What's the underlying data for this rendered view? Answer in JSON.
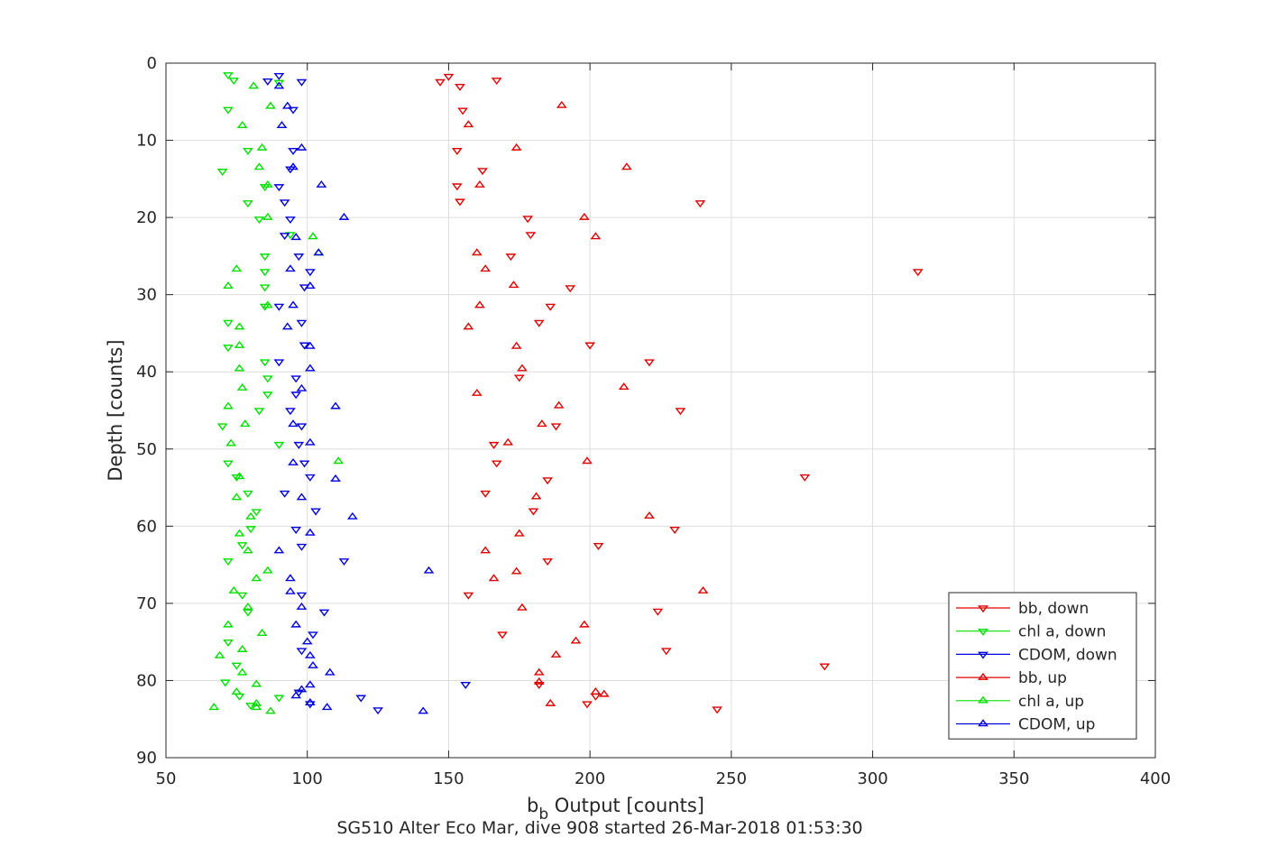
{
  "chart_data": {
    "type": "scatter",
    "title": "",
    "caption": "SG510 Alter Eco Mar, dive 908 started 26-Mar-2018 01:53:30",
    "xlabel_main": "b",
    "xlabel_sub": "b",
    "xlabel_rest": " Output [counts]",
    "ylabel": "Depth [counts]",
    "xlim": [
      50,
      400
    ],
    "ylim": [
      0,
      90
    ],
    "y_reversed": true,
    "grid": true,
    "xticks": [
      50,
      100,
      150,
      200,
      250,
      300,
      350,
      400
    ],
    "yticks": [
      0,
      10,
      20,
      30,
      40,
      50,
      60,
      70,
      80,
      90
    ],
    "legend_position": "bottom-right",
    "series": [
      {
        "name": "bb, down",
        "color": "#e00000",
        "marker": "triangle-down",
        "points": [
          [
            150,
            1.7
          ],
          [
            147,
            2.4
          ],
          [
            167,
            2.2
          ],
          [
            154,
            3.0
          ],
          [
            155,
            6.1
          ],
          [
            153,
            11.3
          ],
          [
            162,
            13.9
          ],
          [
            153,
            15.9
          ],
          [
            154,
            17.9
          ],
          [
            239,
            18.1
          ],
          [
            178,
            20.1
          ],
          [
            179,
            22.2
          ],
          [
            172,
            25.0
          ],
          [
            316,
            27.0
          ],
          [
            193,
            29.1
          ],
          [
            186,
            31.5
          ],
          [
            182,
            33.6
          ],
          [
            200,
            36.5
          ],
          [
            221,
            38.7
          ],
          [
            175,
            40.7
          ],
          [
            232,
            45.0
          ],
          [
            188,
            47.0
          ],
          [
            166,
            49.4
          ],
          [
            167,
            51.8
          ],
          [
            276,
            53.6
          ],
          [
            185,
            54.0
          ],
          [
            163,
            55.7
          ],
          [
            180,
            58.0
          ],
          [
            230,
            60.4
          ],
          [
            203,
            62.5
          ],
          [
            185,
            64.5
          ],
          [
            157,
            68.9
          ],
          [
            224,
            71.0
          ],
          [
            169,
            74.0
          ],
          [
            227,
            76.1
          ],
          [
            283,
            78.1
          ],
          [
            182,
            80.5
          ],
          [
            202,
            82.0
          ],
          [
            199,
            83.0
          ],
          [
            245,
            83.7
          ]
        ]
      },
      {
        "name": "chl a, down",
        "color": "#00e000",
        "marker": "triangle-down",
        "points": [
          [
            72,
            1.5
          ],
          [
            74,
            2.2
          ],
          [
            90,
            2.5
          ],
          [
            72,
            6.0
          ],
          [
            79,
            11.3
          ],
          [
            70,
            14.0
          ],
          [
            85,
            16.0
          ],
          [
            79,
            18.1
          ],
          [
            83,
            20.2
          ],
          [
            94,
            22.2
          ],
          [
            85,
            25.0
          ],
          [
            85,
            27.0
          ],
          [
            85,
            29.0
          ],
          [
            85,
            31.5
          ],
          [
            72,
            33.6
          ],
          [
            72,
            36.8
          ],
          [
            85,
            38.7
          ],
          [
            86,
            40.8
          ],
          [
            86,
            42.9
          ],
          [
            83,
            45.0
          ],
          [
            70,
            47.0
          ],
          [
            90,
            49.4
          ],
          [
            72,
            51.8
          ],
          [
            75,
            53.6
          ],
          [
            79,
            55.7
          ],
          [
            82,
            58.1
          ],
          [
            80,
            60.3
          ],
          [
            77,
            62.4
          ],
          [
            72,
            64.5
          ],
          [
            77,
            68.9
          ],
          [
            79,
            71.1
          ],
          [
            72,
            75.0
          ],
          [
            75,
            78.0
          ],
          [
            71,
            80.2
          ],
          [
            76,
            82.0
          ],
          [
            80,
            83.2
          ],
          [
            90,
            82.2
          ]
        ]
      },
      {
        "name": "CDOM, down",
        "color": "#0000e0",
        "marker": "triangle-down",
        "points": [
          [
            90,
            1.6
          ],
          [
            86,
            2.3
          ],
          [
            98,
            2.4
          ],
          [
            95,
            6.0
          ],
          [
            95,
            11.3
          ],
          [
            94,
            13.7
          ],
          [
            90,
            16.0
          ],
          [
            92,
            18.0
          ],
          [
            94,
            20.2
          ],
          [
            92,
            22.3
          ],
          [
            97,
            25.0
          ],
          [
            101,
            27.0
          ],
          [
            99,
            29.0
          ],
          [
            90,
            31.5
          ],
          [
            98,
            33.6
          ],
          [
            99,
            36.5
          ],
          [
            90,
            38.7
          ],
          [
            96,
            40.8
          ],
          [
            96,
            42.9
          ],
          [
            94,
            45.0
          ],
          [
            98,
            47.0
          ],
          [
            97,
            49.4
          ],
          [
            99,
            51.8
          ],
          [
            101,
            53.6
          ],
          [
            92,
            55.7
          ],
          [
            103,
            58.0
          ],
          [
            96,
            60.4
          ],
          [
            98,
            62.6
          ],
          [
            113,
            64.5
          ],
          [
            98,
            68.9
          ],
          [
            106,
            71.1
          ],
          [
            102,
            74.0
          ],
          [
            98,
            76.1
          ],
          [
            156,
            80.5
          ],
          [
            97,
            81.5
          ],
          [
            119,
            82.2
          ],
          [
            125,
            83.8
          ],
          [
            101,
            83.0
          ]
        ]
      },
      {
        "name": "bb, up",
        "color": "#e00000",
        "marker": "triangle-up",
        "points": [
          [
            190,
            5.5
          ],
          [
            157,
            8.0
          ],
          [
            174,
            11.0
          ],
          [
            213,
            13.5
          ],
          [
            161,
            15.8
          ],
          [
            198,
            20.0
          ],
          [
            202,
            22.5
          ],
          [
            160,
            24.6
          ],
          [
            163,
            26.7
          ],
          [
            173,
            28.8
          ],
          [
            161,
            31.4
          ],
          [
            157,
            34.2
          ],
          [
            174,
            36.7
          ],
          [
            176,
            39.6
          ],
          [
            212,
            42.0
          ],
          [
            160,
            42.8
          ],
          [
            189,
            44.4
          ],
          [
            183,
            46.8
          ],
          [
            171,
            49.2
          ],
          [
            199,
            51.6
          ],
          [
            181,
            56.2
          ],
          [
            221,
            58.7
          ],
          [
            175,
            61.0
          ],
          [
            163,
            63.2
          ],
          [
            174,
            65.9
          ],
          [
            166,
            66.8
          ],
          [
            240,
            68.4
          ],
          [
            176,
            70.6
          ],
          [
            198,
            72.8
          ],
          [
            195,
            74.9
          ],
          [
            188,
            76.7
          ],
          [
            182,
            79.0
          ],
          [
            182,
            80.2
          ],
          [
            202,
            81.5
          ],
          [
            205,
            81.8
          ],
          [
            186,
            83.0
          ]
        ]
      },
      {
        "name": "chl a, up",
        "color": "#00e000",
        "marker": "triangle-up",
        "points": [
          [
            81,
            3.0
          ],
          [
            87,
            5.6
          ],
          [
            77,
            8.1
          ],
          [
            84,
            11.0
          ],
          [
            83,
            13.5
          ],
          [
            86,
            15.8
          ],
          [
            86,
            20.0
          ],
          [
            102,
            22.5
          ],
          [
            104,
            24.6
          ],
          [
            75,
            26.7
          ],
          [
            72,
            28.9
          ],
          [
            86,
            31.4
          ],
          [
            76,
            34.2
          ],
          [
            76,
            36.6
          ],
          [
            76,
            39.6
          ],
          [
            77,
            42.1
          ],
          [
            72,
            44.5
          ],
          [
            78,
            46.8
          ],
          [
            73,
            49.3
          ],
          [
            111,
            51.6
          ],
          [
            76,
            53.6
          ],
          [
            75,
            56.3
          ],
          [
            80,
            58.8
          ],
          [
            76,
            61.0
          ],
          [
            79,
            63.2
          ],
          [
            86,
            65.8
          ],
          [
            82,
            66.8
          ],
          [
            74,
            68.4
          ],
          [
            79,
            70.5
          ],
          [
            72,
            72.8
          ],
          [
            84,
            73.9
          ],
          [
            77,
            76.0
          ],
          [
            69,
            76.8
          ],
          [
            77,
            79.0
          ],
          [
            82,
            80.5
          ],
          [
            75,
            81.5
          ],
          [
            82,
            83.0
          ],
          [
            82,
            83.5
          ],
          [
            87,
            84.0
          ],
          [
            67,
            83.5
          ]
        ]
      },
      {
        "name": "CDOM, up",
        "color": "#0000e0",
        "marker": "triangle-up",
        "points": [
          [
            90,
            3.0
          ],
          [
            93,
            5.6
          ],
          [
            91,
            8.1
          ],
          [
            98,
            11.0
          ],
          [
            95,
            13.5
          ],
          [
            105,
            15.8
          ],
          [
            113,
            20.0
          ],
          [
            96,
            22.6
          ],
          [
            104,
            24.6
          ],
          [
            94,
            26.7
          ],
          [
            101,
            28.9
          ],
          [
            95,
            31.4
          ],
          [
            93,
            34.2
          ],
          [
            101,
            36.7
          ],
          [
            101,
            39.6
          ],
          [
            98,
            42.2
          ],
          [
            110,
            44.5
          ],
          [
            95,
            46.8
          ],
          [
            101,
            49.2
          ],
          [
            95,
            51.8
          ],
          [
            110,
            53.9
          ],
          [
            98,
            56.3
          ],
          [
            116,
            58.8
          ],
          [
            101,
            60.9
          ],
          [
            90,
            63.2
          ],
          [
            143,
            65.8
          ],
          [
            94,
            66.8
          ],
          [
            94,
            68.5
          ],
          [
            98,
            70.5
          ],
          [
            96,
            72.8
          ],
          [
            100,
            75.0
          ],
          [
            101,
            76.8
          ],
          [
            102,
            78.1
          ],
          [
            108,
            79.0
          ],
          [
            101,
            80.6
          ],
          [
            98,
            81.2
          ],
          [
            96,
            82.0
          ],
          [
            101,
            82.9
          ],
          [
            107,
            83.5
          ],
          [
            141,
            84.0
          ]
        ]
      }
    ]
  }
}
